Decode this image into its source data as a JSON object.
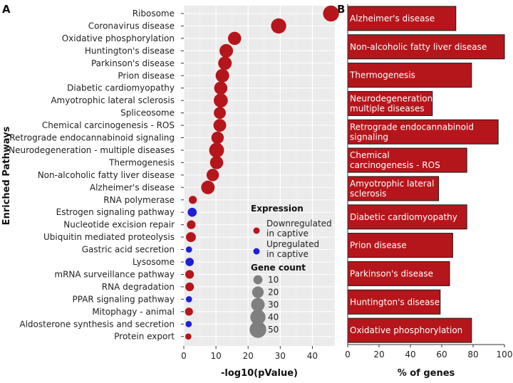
{
  "panel_a_label": "A",
  "panel_b_label": "B",
  "chart_data": [
    {
      "type": "scatter",
      "panel": "A",
      "xlabel": "-log10(pValue)",
      "ylabel": "Enriched Pathways",
      "xlim": [
        0,
        47
      ],
      "xticks": [
        0,
        10,
        20,
        30,
        40
      ],
      "grid": true,
      "colors": {
        "down": "#b5161b",
        "up": "#1f1fd6"
      },
      "points": [
        {
          "pathway": "Ribosome",
          "x": 45.8,
          "count": 45,
          "expr": "down"
        },
        {
          "pathway": "Coronavirus disease",
          "x": 29.5,
          "count": 40,
          "expr": "down"
        },
        {
          "pathway": "Oxidative phosphorylation",
          "x": 15.8,
          "count": 28,
          "expr": "down"
        },
        {
          "pathway": "Huntington's disease",
          "x": 13.2,
          "count": 30,
          "expr": "down"
        },
        {
          "pathway": "Parkinson's disease",
          "x": 12.8,
          "count": 30,
          "expr": "down"
        },
        {
          "pathway": "Prion disease",
          "x": 12.0,
          "count": 30,
          "expr": "down"
        },
        {
          "pathway": "Diabetic cardiomyopathy",
          "x": 11.5,
          "count": 28,
          "expr": "down"
        },
        {
          "pathway": "Amyotrophic lateral sclerosis",
          "x": 11.5,
          "count": 33,
          "expr": "down"
        },
        {
          "pathway": "Spliceosome",
          "x": 11.2,
          "count": 22,
          "expr": "down"
        },
        {
          "pathway": "Chemical carcinogenesis - ROS",
          "x": 11.2,
          "count": 26,
          "expr": "down"
        },
        {
          "pathway": "Retrograde endocannabinoid signaling",
          "x": 10.5,
          "count": 24,
          "expr": "down"
        },
        {
          "pathway": "Neurodegeneration - multiple diseases",
          "x": 10.2,
          "count": 38,
          "expr": "down"
        },
        {
          "pathway": "Thermogenesis",
          "x": 10.2,
          "count": 28,
          "expr": "down"
        },
        {
          "pathway": "Non-alcoholic fatty liver disease",
          "x": 9.0,
          "count": 24,
          "expr": "down"
        },
        {
          "pathway": "Alzheimer's disease",
          "x": 7.5,
          "count": 30,
          "expr": "down"
        },
        {
          "pathway": "RNA polymerase",
          "x": 2.8,
          "count": 7,
          "expr": "down"
        },
        {
          "pathway": "Estrogen signaling pathway",
          "x": 2.6,
          "count": 10,
          "expr": "up"
        },
        {
          "pathway": "Nucleotide excision repair",
          "x": 2.3,
          "count": 9,
          "expr": "down"
        },
        {
          "pathway": "Ubiquitin mediated proteolysis",
          "x": 2.2,
          "count": 13,
          "expr": "down"
        },
        {
          "pathway": "Gastric acid secretion",
          "x": 1.6,
          "count": 3,
          "expr": "up"
        },
        {
          "pathway": "Lysosome",
          "x": 1.8,
          "count": 8,
          "expr": "up"
        },
        {
          "pathway": "mRNA surveillance pathway",
          "x": 1.8,
          "count": 9,
          "expr": "down"
        },
        {
          "pathway": "RNA degradation",
          "x": 1.8,
          "count": 9,
          "expr": "down"
        },
        {
          "pathway": "PPAR signaling pathway",
          "x": 1.6,
          "count": 3,
          "expr": "up"
        },
        {
          "pathway": "Mitophagy - animal",
          "x": 1.6,
          "count": 7,
          "expr": "down"
        },
        {
          "pathway": "Aldosterone synthesis and secretion",
          "x": 1.5,
          "count": 3,
          "expr": "up"
        },
        {
          "pathway": "Protein export",
          "x": 1.4,
          "count": 3,
          "expr": "down"
        }
      ],
      "legend": {
        "expression_title": "Expression",
        "expression_items": [
          {
            "label_lines": [
              "Downregulated",
              "in captive"
            ],
            "expr": "down"
          },
          {
            "label_lines": [
              "Upregulated",
              "in captive"
            ],
            "expr": "up"
          }
        ],
        "count_title": "Gene count",
        "count_items": [
          10,
          20,
          30,
          40,
          50
        ]
      }
    },
    {
      "type": "bar",
      "panel": "B",
      "orientation": "horizontal",
      "xlabel": "% of genes",
      "xlim": [
        0,
        100
      ],
      "xticks": [
        0,
        20,
        40,
        60,
        80,
        100
      ],
      "bar_color": "#b5161b",
      "bars": [
        {
          "label_lines": [
            "Alzheimer's disease"
          ],
          "value": 69
        },
        {
          "label_lines": [
            "Non-alcoholic fatty liver disease"
          ],
          "value": 100
        },
        {
          "label_lines": [
            "Thermogenesis"
          ],
          "value": 79
        },
        {
          "label_lines": [
            "Neurodegeneration-",
            "multiple diseases"
          ],
          "value": 54
        },
        {
          "label_lines": [
            "Retrograde endocannabinoid",
            "signaling"
          ],
          "value": 96
        },
        {
          "label_lines": [
            "Chemical",
            "carcinogenesis - ROS"
          ],
          "value": 76
        },
        {
          "label_lines": [
            "Amyotrophic lateral",
            "sclerosis"
          ],
          "value": 58
        },
        {
          "label_lines": [
            "Diabetic cardiomyopathy"
          ],
          "value": 76
        },
        {
          "label_lines": [
            "Prion disease"
          ],
          "value": 67
        },
        {
          "label_lines": [
            "Parkinson's disease"
          ],
          "value": 65
        },
        {
          "label_lines": [
            "Huntington's disease"
          ],
          "value": 59
        },
        {
          "label_lines": [
            "Oxidative phosphorylation"
          ],
          "value": 79
        }
      ]
    }
  ]
}
